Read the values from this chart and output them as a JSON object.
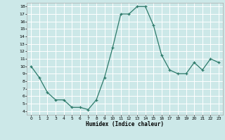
{
  "x": [
    0,
    1,
    2,
    3,
    4,
    5,
    6,
    7,
    8,
    9,
    10,
    11,
    12,
    13,
    14,
    15,
    16,
    17,
    18,
    19,
    20,
    21,
    22,
    23
  ],
  "y": [
    10,
    8.5,
    6.5,
    5.5,
    5.5,
    4.5,
    4.5,
    4.2,
    5.5,
    8.5,
    12.5,
    17.0,
    17.0,
    18.0,
    18.0,
    15.5,
    11.5,
    9.5,
    9.0,
    9.0,
    10.5,
    9.5,
    11.0,
    10.5
  ],
  "xlabel": "Humidex (Indice chaleur)",
  "ylim": [
    3.5,
    18.5
  ],
  "xlim": [
    -0.5,
    23.5
  ],
  "yticks": [
    4,
    5,
    6,
    7,
    8,
    9,
    10,
    11,
    12,
    13,
    14,
    15,
    16,
    17,
    18
  ],
  "xticks": [
    0,
    1,
    2,
    3,
    4,
    5,
    6,
    7,
    8,
    9,
    10,
    11,
    12,
    13,
    14,
    15,
    16,
    17,
    18,
    19,
    20,
    21,
    22,
    23
  ],
  "line_color": "#2d7a6a",
  "marker": "+",
  "bg_color": "#cce8e8",
  "grid_color": "#b0d0d0",
  "spine_color": "#aaaaaa"
}
